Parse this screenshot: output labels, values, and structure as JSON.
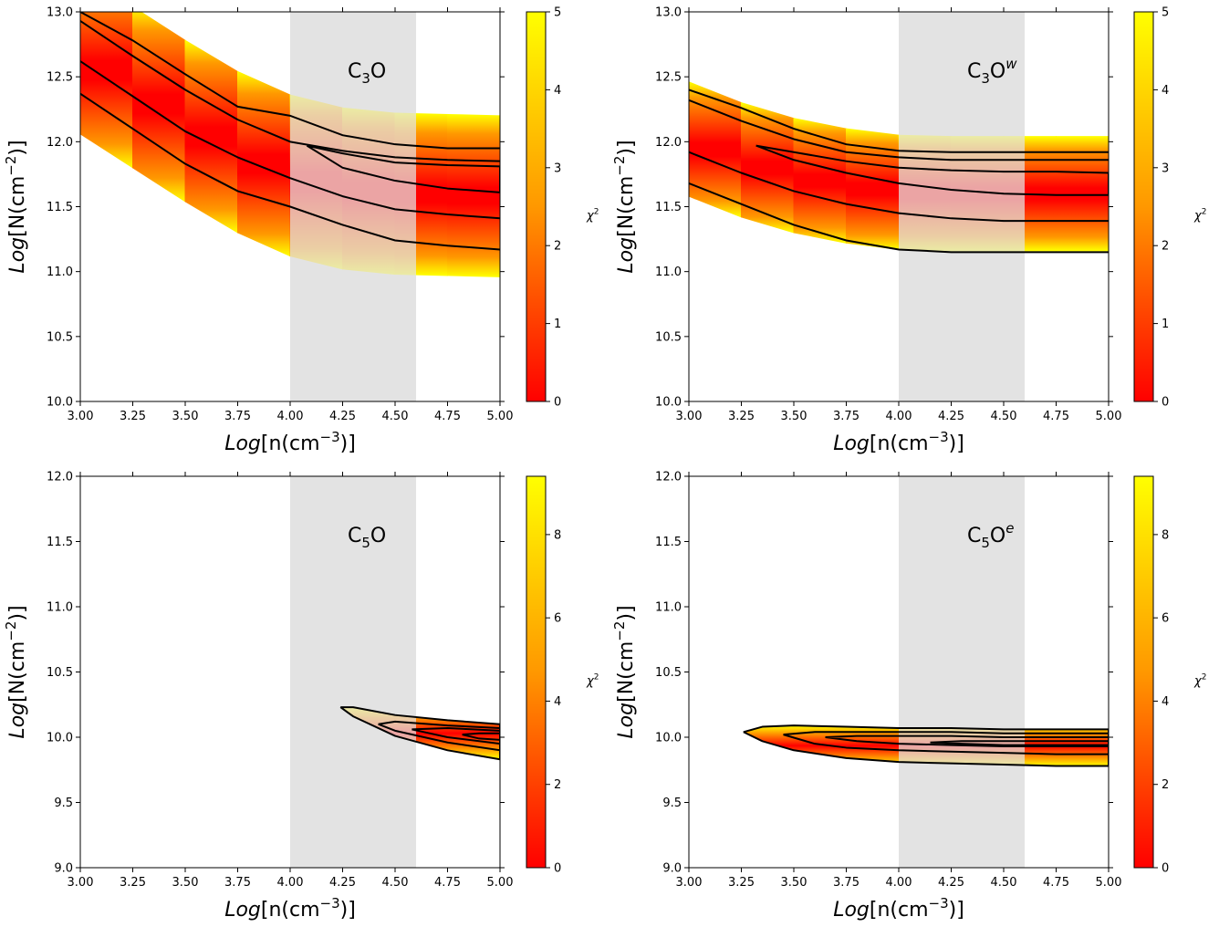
{
  "colormap": {
    "low": "#ff0000",
    "mid": "#ff9800",
    "high": "#ffff00",
    "contour": "#000000",
    "shade": "#e3e3e3"
  },
  "chart_data": [
    {
      "type": "heatmap",
      "molecule": {
        "base": "C",
        "sub": "3",
        "tail": "O",
        "sup": ""
      },
      "xlabel": {
        "pre": "Log",
        "mid": "[n(cm",
        "exp": "−3",
        "post": ")]"
      },
      "ylabel": {
        "pre": "Log",
        "mid": "[N(cm",
        "exp": "−2",
        "post": ")]"
      },
      "xlim": [
        3.0,
        5.0
      ],
      "ylim": [
        10.0,
        13.0
      ],
      "xticks": [
        "3.00",
        "3.25",
        "3.50",
        "3.75",
        "4.00",
        "4.25",
        "4.50",
        "4.75",
        "5.00"
      ],
      "yticks": [
        "10.0",
        "10.5",
        "11.0",
        "11.5",
        "12.0",
        "12.5",
        "13.0"
      ],
      "shaded_x": [
        4.0,
        4.6
      ],
      "colorbar": {
        "label": "χ",
        "label_sup": "2",
        "range": [
          0,
          5
        ],
        "ticks": [
          "0",
          "1",
          "2",
          "3",
          "4",
          "5"
        ]
      },
      "band": {
        "x": [
          3.0,
          3.25,
          3.5,
          3.75,
          4.0,
          4.25,
          4.5,
          4.75,
          5.0
        ],
        "center": [
          12.68,
          12.42,
          12.16,
          11.92,
          11.74,
          11.64,
          11.6,
          11.59,
          11.58
        ],
        "half_width": 0.62
      },
      "contours": [
        {
          "level": "outer",
          "x": [
            3.0,
            3.25,
            3.5,
            3.75,
            4.0,
            4.25,
            4.5,
            4.75,
            5.0
          ],
          "upper": [
            13.0,
            12.78,
            12.52,
            12.27,
            12.2,
            12.05,
            11.98,
            11.95,
            11.95
          ],
          "lower": [
            12.37,
            12.1,
            11.83,
            11.62,
            11.5,
            11.36,
            11.24,
            11.2,
            11.17
          ]
        },
        {
          "level": "inner1",
          "x": [
            3.0,
            3.25,
            3.5,
            3.75,
            4.0,
            4.25,
            4.5,
            4.75,
            5.0
          ],
          "upper": [
            12.93,
            12.66,
            12.4,
            12.17,
            12.0,
            11.93,
            11.88,
            11.86,
            11.85
          ],
          "lower": null
        },
        {
          "level": "inner2",
          "x": [
            3.0,
            3.25,
            3.5,
            3.75,
            4.0,
            4.25,
            4.5,
            4.75,
            5.0
          ],
          "upper": [
            12.62,
            12.35,
            12.08,
            11.88,
            11.72,
            11.58,
            11.48,
            11.44,
            11.41
          ],
          "lower": null
        },
        {
          "level": "closed",
          "x": [
            4.08,
            4.25,
            4.5,
            4.75,
            5.0
          ],
          "upper": [
            11.97,
            11.91,
            11.84,
            11.82,
            11.81
          ],
          "lower": [
            11.97,
            11.8,
            11.7,
            11.64,
            11.61
          ]
        }
      ]
    },
    {
      "type": "heatmap",
      "molecule": {
        "base": "C",
        "sub": "3",
        "tail": "O",
        "sup": "w"
      },
      "xlabel": {
        "pre": "Log",
        "mid": "[n(cm",
        "exp": "−3",
        "post": ")]"
      },
      "ylabel": {
        "pre": "Log",
        "mid": "[N(cm",
        "exp": "−2",
        "post": ")]"
      },
      "xlim": [
        3.0,
        5.0
      ],
      "ylim": [
        10.0,
        13.0
      ],
      "xticks": [
        "3.00",
        "3.25",
        "3.50",
        "3.75",
        "4.00",
        "4.25",
        "4.50",
        "4.75",
        "5.00"
      ],
      "yticks": [
        "10.0",
        "10.5",
        "11.0",
        "11.5",
        "12.0",
        "12.5",
        "13.0"
      ],
      "shaded_x": [
        4.0,
        4.6
      ],
      "colorbar": {
        "label": "χ",
        "label_sup": "2",
        "range": [
          0,
          5
        ],
        "ticks": [
          "0",
          "1",
          "2",
          "3",
          "4",
          "5"
        ]
      },
      "band": {
        "x": [
          3.0,
          3.25,
          3.5,
          3.75,
          4.0,
          4.25,
          4.5,
          4.75,
          5.0
        ],
        "center": [
          12.02,
          11.86,
          11.74,
          11.66,
          11.61,
          11.6,
          11.6,
          11.6,
          11.6
        ],
        "half_width": 0.44
      },
      "contours": [
        {
          "level": "outer",
          "x": [
            3.0,
            3.25,
            3.5,
            3.75,
            4.0,
            4.25,
            4.5,
            4.75,
            5.0
          ],
          "upper": [
            12.4,
            12.26,
            12.1,
            11.98,
            11.93,
            11.92,
            11.92,
            11.92,
            11.92
          ],
          "lower": [
            11.68,
            11.52,
            11.36,
            11.24,
            11.17,
            11.15,
            11.15,
            11.15,
            11.15
          ]
        },
        {
          "level": "inner1",
          "x": [
            3.0,
            3.25,
            3.5,
            3.75,
            4.0,
            4.25,
            4.5,
            4.75,
            5.0
          ],
          "upper": [
            12.32,
            12.16,
            12.02,
            11.92,
            11.88,
            11.86,
            11.86,
            11.86,
            11.86
          ],
          "lower": null
        },
        {
          "level": "inner2",
          "x": [
            3.0,
            3.25,
            3.5,
            3.75,
            4.0,
            4.25,
            4.5,
            4.75,
            5.0
          ],
          "upper": [
            11.92,
            11.76,
            11.62,
            11.52,
            11.45,
            11.41,
            11.39,
            11.39,
            11.39
          ],
          "lower": null
        },
        {
          "level": "closed",
          "x": [
            3.32,
            3.5,
            3.75,
            4.0,
            4.25,
            4.5,
            4.75,
            5.0
          ],
          "upper": [
            11.97,
            11.92,
            11.85,
            11.8,
            11.78,
            11.77,
            11.77,
            11.76
          ],
          "lower": [
            11.97,
            11.86,
            11.76,
            11.68,
            11.63,
            11.6,
            11.59,
            11.59
          ]
        }
      ]
    },
    {
      "type": "heatmap",
      "molecule": {
        "base": "C",
        "sub": "5",
        "tail": "O",
        "sup": ""
      },
      "xlabel": {
        "pre": "Log",
        "mid": "[n(cm",
        "exp": "−3",
        "post": ")]"
      },
      "ylabel": {
        "pre": "Log",
        "mid": "[N(cm",
        "exp": "−2",
        "post": ")]"
      },
      "xlim": [
        3.0,
        5.0
      ],
      "ylim": [
        9.0,
        12.0
      ],
      "xticks": [
        "3.00",
        "3.25",
        "3.50",
        "3.75",
        "4.00",
        "4.25",
        "4.50",
        "4.75",
        "5.00"
      ],
      "yticks": [
        "9.0",
        "9.5",
        "10.0",
        "10.5",
        "11.0",
        "11.5",
        "12.0"
      ],
      "shaded_x": [
        4.0,
        4.6
      ],
      "colorbar": {
        "label": "χ",
        "label_sup": "2",
        "range": [
          0,
          9.4
        ],
        "ticks": [
          "0",
          "2",
          "4",
          "6",
          "8"
        ]
      },
      "band": null,
      "contours": [
        {
          "level": "outer",
          "x": [
            4.24,
            4.3,
            4.5,
            4.75,
            5.0
          ],
          "upper": [
            10.23,
            10.23,
            10.17,
            10.13,
            10.1
          ],
          "lower": [
            10.23,
            10.16,
            10.01,
            9.9,
            9.83
          ]
        },
        {
          "level": "inner1",
          "x": [
            4.42,
            4.5,
            4.75,
            5.0
          ],
          "upper": [
            10.1,
            10.12,
            10.09,
            10.07
          ],
          "lower": [
            10.1,
            10.05,
            9.96,
            9.9
          ]
        },
        {
          "level": "inner2",
          "x": [
            4.58,
            4.75,
            5.0
          ],
          "upper": [
            10.06,
            10.07,
            10.05
          ],
          "lower": [
            10.06,
            10.0,
            9.95
          ]
        },
        {
          "level": "inner3",
          "x": [
            4.82,
            4.9,
            5.0
          ],
          "upper": [
            10.02,
            10.03,
            10.03
          ],
          "lower": [
            10.02,
            9.99,
            9.98
          ]
        }
      ]
    },
    {
      "type": "heatmap",
      "molecule": {
        "base": "C",
        "sub": "5",
        "tail": "O",
        "sup": "e"
      },
      "xlabel": {
        "pre": "Log",
        "mid": "[n(cm",
        "exp": "−3",
        "post": ")]"
      },
      "ylabel": {
        "pre": "Log",
        "mid": "[N(cm",
        "exp": "−2",
        "post": ")]"
      },
      "xlim": [
        3.0,
        5.0
      ],
      "ylim": [
        9.0,
        12.0
      ],
      "xticks": [
        "3.00",
        "3.25",
        "3.50",
        "3.75",
        "4.00",
        "4.25",
        "4.50",
        "4.75",
        "5.00"
      ],
      "yticks": [
        "9.0",
        "9.5",
        "10.0",
        "10.5",
        "11.0",
        "11.5",
        "12.0"
      ],
      "shaded_x": [
        4.0,
        4.6
      ],
      "colorbar": {
        "label": "χ",
        "label_sup": "2",
        "range": [
          0,
          9.4
        ],
        "ticks": [
          "0",
          "2",
          "4",
          "6",
          "8"
        ]
      },
      "band": null,
      "contours": [
        {
          "level": "outer",
          "x": [
            3.26,
            3.35,
            3.5,
            3.75,
            4.0,
            4.25,
            4.5,
            4.75,
            5.0
          ],
          "upper": [
            10.04,
            10.08,
            10.09,
            10.08,
            10.07,
            10.07,
            10.06,
            10.06,
            10.06
          ],
          "lower": [
            10.04,
            9.97,
            9.9,
            9.84,
            9.81,
            9.8,
            9.79,
            9.78,
            9.78
          ]
        },
        {
          "level": "inner1",
          "x": [
            3.45,
            3.6,
            3.75,
            4.0,
            4.25,
            4.5,
            4.75,
            5.0
          ],
          "upper": [
            10.02,
            10.04,
            10.04,
            10.04,
            10.04,
            10.03,
            10.03,
            10.03
          ],
          "lower": [
            10.02,
            9.95,
            9.92,
            9.9,
            9.89,
            9.88,
            9.87,
            9.87
          ]
        },
        {
          "level": "inner2",
          "x": [
            3.65,
            3.8,
            4.0,
            4.25,
            4.5,
            4.75,
            5.0
          ],
          "upper": [
            10.0,
            10.01,
            10.01,
            10.01,
            10.0,
            10.0,
            10.0
          ],
          "lower": [
            10.0,
            9.97,
            9.95,
            9.94,
            9.93,
            9.93,
            9.93
          ]
        },
        {
          "level": "inner3",
          "x": [
            4.15,
            4.3,
            4.5,
            4.75,
            5.0
          ],
          "upper": [
            9.96,
            9.97,
            9.97,
            9.97,
            9.97
          ],
          "lower": [
            9.96,
            9.95,
            9.94,
            9.94,
            9.94
          ]
        }
      ]
    }
  ]
}
